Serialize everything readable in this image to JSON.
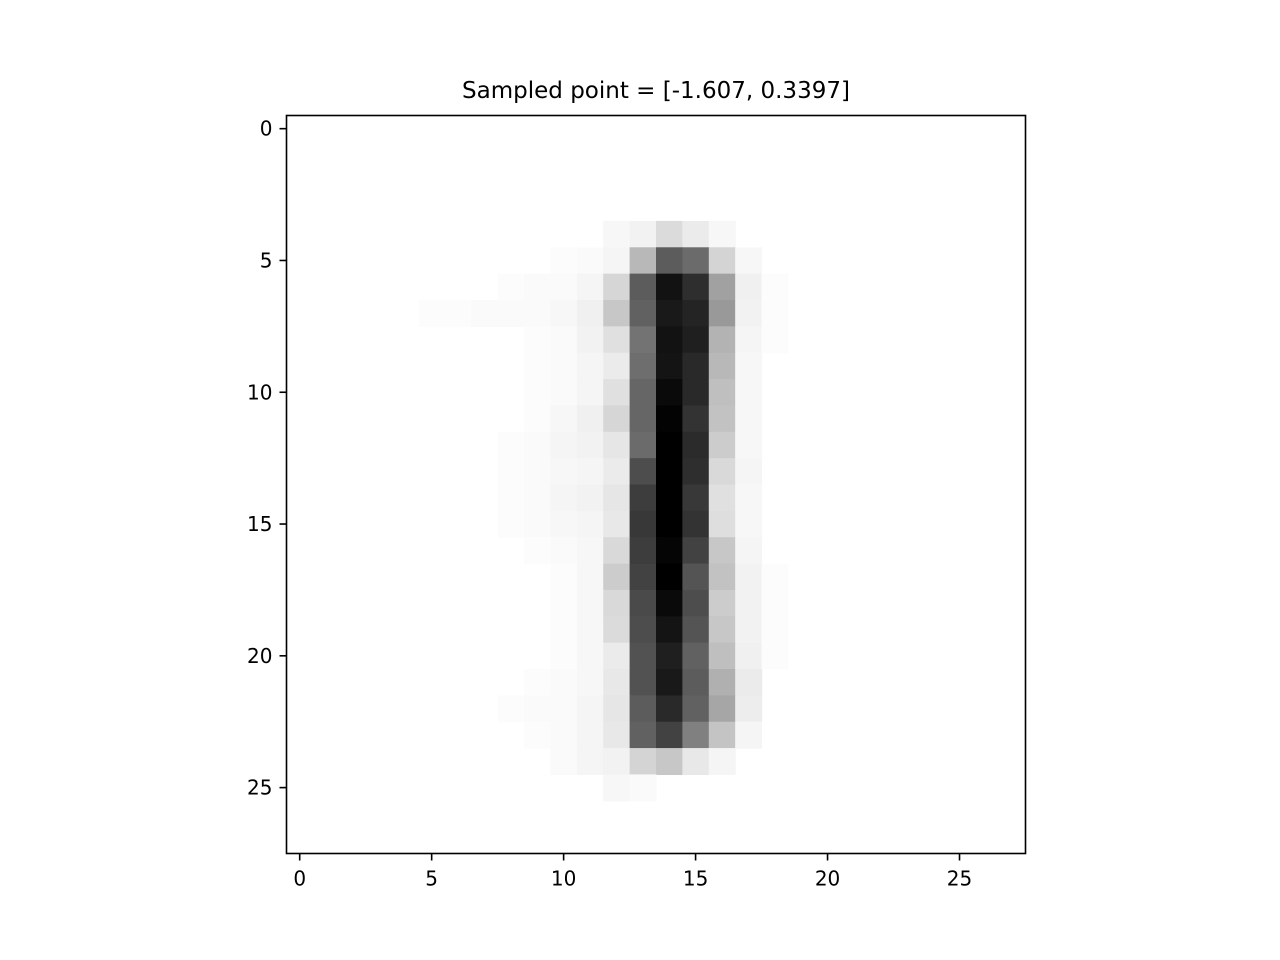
{
  "chart_data": {
    "type": "heatmap",
    "title": "Sampled point = [-1.607, 0.3397]",
    "xlabel": "",
    "ylabel": "",
    "colormap": "gray_r",
    "value_range": [
      0,
      1
    ],
    "xlim": [
      -0.5,
      27.5
    ],
    "ylim": [
      27.5,
      -0.5
    ],
    "x_ticks": [
      0,
      5,
      10,
      15,
      20,
      25
    ],
    "y_ticks": [
      0,
      5,
      10,
      15,
      20,
      25
    ],
    "x_tick_labels": [
      "0",
      "5",
      "10",
      "15",
      "20",
      "25"
    ],
    "y_tick_labels": [
      "0",
      "5",
      "10",
      "15",
      "20",
      "25"
    ],
    "grid": false,
    "rows": 28,
    "cols": 28,
    "nonzero_pixels": [
      {
        "row": 4,
        "col": 12,
        "v": 0.03
      },
      {
        "row": 4,
        "col": 13,
        "v": 0.05
      },
      {
        "row": 4,
        "col": 14,
        "v": 0.14
      },
      {
        "row": 4,
        "col": 15,
        "v": 0.08
      },
      {
        "row": 4,
        "col": 16,
        "v": 0.03
      },
      {
        "row": 5,
        "col": 10,
        "v": 0.01
      },
      {
        "row": 5,
        "col": 11,
        "v": 0.02
      },
      {
        "row": 5,
        "col": 12,
        "v": 0.04
      },
      {
        "row": 5,
        "col": 13,
        "v": 0.28
      },
      {
        "row": 5,
        "col": 14,
        "v": 0.64
      },
      {
        "row": 5,
        "col": 15,
        "v": 0.58
      },
      {
        "row": 5,
        "col": 16,
        "v": 0.17
      },
      {
        "row": 5,
        "col": 17,
        "v": 0.03
      },
      {
        "row": 6,
        "col": 8,
        "v": 0.01
      },
      {
        "row": 6,
        "col": 9,
        "v": 0.02
      },
      {
        "row": 6,
        "col": 10,
        "v": 0.02
      },
      {
        "row": 6,
        "col": 11,
        "v": 0.04
      },
      {
        "row": 6,
        "col": 12,
        "v": 0.16
      },
      {
        "row": 6,
        "col": 13,
        "v": 0.64
      },
      {
        "row": 6,
        "col": 14,
        "v": 0.93
      },
      {
        "row": 6,
        "col": 15,
        "v": 0.82
      },
      {
        "row": 6,
        "col": 16,
        "v": 0.37
      },
      {
        "row": 6,
        "col": 17,
        "v": 0.06
      },
      {
        "row": 6,
        "col": 18,
        "v": 0.01
      },
      {
        "row": 7,
        "col": 5,
        "v": 0.01
      },
      {
        "row": 7,
        "col": 6,
        "v": 0.01
      },
      {
        "row": 7,
        "col": 7,
        "v": 0.02
      },
      {
        "row": 7,
        "col": 8,
        "v": 0.02
      },
      {
        "row": 7,
        "col": 9,
        "v": 0.02
      },
      {
        "row": 7,
        "col": 10,
        "v": 0.03
      },
      {
        "row": 7,
        "col": 11,
        "v": 0.06
      },
      {
        "row": 7,
        "col": 12,
        "v": 0.22
      },
      {
        "row": 7,
        "col": 13,
        "v": 0.62
      },
      {
        "row": 7,
        "col": 14,
        "v": 0.9
      },
      {
        "row": 7,
        "col": 15,
        "v": 0.86
      },
      {
        "row": 7,
        "col": 16,
        "v": 0.4
      },
      {
        "row": 7,
        "col": 17,
        "v": 0.05
      },
      {
        "row": 7,
        "col": 18,
        "v": 0.01
      },
      {
        "row": 8,
        "col": 9,
        "v": 0.01
      },
      {
        "row": 8,
        "col": 10,
        "v": 0.02
      },
      {
        "row": 8,
        "col": 11,
        "v": 0.05
      },
      {
        "row": 8,
        "col": 12,
        "v": 0.12
      },
      {
        "row": 8,
        "col": 13,
        "v": 0.55
      },
      {
        "row": 8,
        "col": 14,
        "v": 0.93
      },
      {
        "row": 8,
        "col": 15,
        "v": 0.88
      },
      {
        "row": 8,
        "col": 16,
        "v": 0.3
      },
      {
        "row": 8,
        "col": 17,
        "v": 0.04
      },
      {
        "row": 8,
        "col": 18,
        "v": 0.01
      },
      {
        "row": 9,
        "col": 9,
        "v": 0.01
      },
      {
        "row": 9,
        "col": 10,
        "v": 0.02
      },
      {
        "row": 9,
        "col": 11,
        "v": 0.04
      },
      {
        "row": 9,
        "col": 12,
        "v": 0.08
      },
      {
        "row": 9,
        "col": 13,
        "v": 0.57
      },
      {
        "row": 9,
        "col": 14,
        "v": 0.92
      },
      {
        "row": 9,
        "col": 15,
        "v": 0.84
      },
      {
        "row": 9,
        "col": 16,
        "v": 0.28
      },
      {
        "row": 9,
        "col": 17,
        "v": 0.03
      },
      {
        "row": 10,
        "col": 9,
        "v": 0.01
      },
      {
        "row": 10,
        "col": 10,
        "v": 0.02
      },
      {
        "row": 10,
        "col": 11,
        "v": 0.04
      },
      {
        "row": 10,
        "col": 12,
        "v": 0.12
      },
      {
        "row": 10,
        "col": 13,
        "v": 0.6
      },
      {
        "row": 10,
        "col": 14,
        "v": 0.96
      },
      {
        "row": 10,
        "col": 15,
        "v": 0.84
      },
      {
        "row": 10,
        "col": 16,
        "v": 0.25
      },
      {
        "row": 10,
        "col": 17,
        "v": 0.03
      },
      {
        "row": 11,
        "col": 9,
        "v": 0.01
      },
      {
        "row": 11,
        "col": 10,
        "v": 0.03
      },
      {
        "row": 11,
        "col": 11,
        "v": 0.06
      },
      {
        "row": 11,
        "col": 12,
        "v": 0.16
      },
      {
        "row": 11,
        "col": 13,
        "v": 0.6
      },
      {
        "row": 11,
        "col": 14,
        "v": 0.99
      },
      {
        "row": 11,
        "col": 15,
        "v": 0.8
      },
      {
        "row": 11,
        "col": 16,
        "v": 0.24
      },
      {
        "row": 11,
        "col": 17,
        "v": 0.03
      },
      {
        "row": 12,
        "col": 8,
        "v": 0.01
      },
      {
        "row": 12,
        "col": 9,
        "v": 0.02
      },
      {
        "row": 12,
        "col": 10,
        "v": 0.04
      },
      {
        "row": 12,
        "col": 11,
        "v": 0.05
      },
      {
        "row": 12,
        "col": 12,
        "v": 0.1
      },
      {
        "row": 12,
        "col": 13,
        "v": 0.58
      },
      {
        "row": 12,
        "col": 14,
        "v": 1.0
      },
      {
        "row": 12,
        "col": 15,
        "v": 0.83
      },
      {
        "row": 12,
        "col": 16,
        "v": 0.2
      },
      {
        "row": 12,
        "col": 17,
        "v": 0.03
      },
      {
        "row": 13,
        "col": 8,
        "v": 0.01
      },
      {
        "row": 13,
        "col": 9,
        "v": 0.02
      },
      {
        "row": 13,
        "col": 10,
        "v": 0.03
      },
      {
        "row": 13,
        "col": 11,
        "v": 0.04
      },
      {
        "row": 13,
        "col": 12,
        "v": 0.08
      },
      {
        "row": 13,
        "col": 13,
        "v": 0.7
      },
      {
        "row": 13,
        "col": 14,
        "v": 1.0
      },
      {
        "row": 13,
        "col": 15,
        "v": 0.82
      },
      {
        "row": 13,
        "col": 16,
        "v": 0.15
      },
      {
        "row": 13,
        "col": 17,
        "v": 0.04
      },
      {
        "row": 14,
        "col": 8,
        "v": 0.01
      },
      {
        "row": 14,
        "col": 9,
        "v": 0.02
      },
      {
        "row": 14,
        "col": 10,
        "v": 0.04
      },
      {
        "row": 14,
        "col": 11,
        "v": 0.05
      },
      {
        "row": 14,
        "col": 12,
        "v": 0.1
      },
      {
        "row": 14,
        "col": 13,
        "v": 0.76
      },
      {
        "row": 14,
        "col": 14,
        "v": 1.0
      },
      {
        "row": 14,
        "col": 15,
        "v": 0.78
      },
      {
        "row": 14,
        "col": 16,
        "v": 0.12
      },
      {
        "row": 14,
        "col": 17,
        "v": 0.03
      },
      {
        "row": 15,
        "col": 8,
        "v": 0.01
      },
      {
        "row": 15,
        "col": 9,
        "v": 0.02
      },
      {
        "row": 15,
        "col": 10,
        "v": 0.03
      },
      {
        "row": 15,
        "col": 11,
        "v": 0.04
      },
      {
        "row": 15,
        "col": 12,
        "v": 0.09
      },
      {
        "row": 15,
        "col": 13,
        "v": 0.78
      },
      {
        "row": 15,
        "col": 14,
        "v": 1.0
      },
      {
        "row": 15,
        "col": 15,
        "v": 0.8
      },
      {
        "row": 15,
        "col": 16,
        "v": 0.13
      },
      {
        "row": 15,
        "col": 17,
        "v": 0.03
      },
      {
        "row": 16,
        "col": 9,
        "v": 0.01
      },
      {
        "row": 16,
        "col": 10,
        "v": 0.02
      },
      {
        "row": 16,
        "col": 11,
        "v": 0.03
      },
      {
        "row": 16,
        "col": 12,
        "v": 0.15
      },
      {
        "row": 16,
        "col": 13,
        "v": 0.76
      },
      {
        "row": 16,
        "col": 14,
        "v": 0.98
      },
      {
        "row": 16,
        "col": 15,
        "v": 0.74
      },
      {
        "row": 16,
        "col": 16,
        "v": 0.22
      },
      {
        "row": 16,
        "col": 17,
        "v": 0.04
      },
      {
        "row": 17,
        "col": 10,
        "v": 0.01
      },
      {
        "row": 17,
        "col": 11,
        "v": 0.03
      },
      {
        "row": 17,
        "col": 12,
        "v": 0.2
      },
      {
        "row": 17,
        "col": 13,
        "v": 0.74
      },
      {
        "row": 17,
        "col": 14,
        "v": 1.0
      },
      {
        "row": 17,
        "col": 15,
        "v": 0.67
      },
      {
        "row": 17,
        "col": 16,
        "v": 0.24
      },
      {
        "row": 17,
        "col": 17,
        "v": 0.05
      },
      {
        "row": 17,
        "col": 18,
        "v": 0.01
      },
      {
        "row": 18,
        "col": 10,
        "v": 0.01
      },
      {
        "row": 18,
        "col": 11,
        "v": 0.03
      },
      {
        "row": 18,
        "col": 12,
        "v": 0.15
      },
      {
        "row": 18,
        "col": 13,
        "v": 0.71
      },
      {
        "row": 18,
        "col": 14,
        "v": 0.96
      },
      {
        "row": 18,
        "col": 15,
        "v": 0.7
      },
      {
        "row": 18,
        "col": 16,
        "v": 0.2
      },
      {
        "row": 18,
        "col": 17,
        "v": 0.05
      },
      {
        "row": 18,
        "col": 18,
        "v": 0.01
      },
      {
        "row": 19,
        "col": 10,
        "v": 0.01
      },
      {
        "row": 19,
        "col": 11,
        "v": 0.03
      },
      {
        "row": 19,
        "col": 12,
        "v": 0.14
      },
      {
        "row": 19,
        "col": 13,
        "v": 0.7
      },
      {
        "row": 19,
        "col": 14,
        "v": 0.92
      },
      {
        "row": 19,
        "col": 15,
        "v": 0.67
      },
      {
        "row": 19,
        "col": 16,
        "v": 0.22
      },
      {
        "row": 19,
        "col": 17,
        "v": 0.05
      },
      {
        "row": 19,
        "col": 18,
        "v": 0.01
      },
      {
        "row": 20,
        "col": 10,
        "v": 0.01
      },
      {
        "row": 20,
        "col": 11,
        "v": 0.03
      },
      {
        "row": 20,
        "col": 12,
        "v": 0.08
      },
      {
        "row": 20,
        "col": 13,
        "v": 0.68
      },
      {
        "row": 20,
        "col": 14,
        "v": 0.88
      },
      {
        "row": 20,
        "col": 15,
        "v": 0.62
      },
      {
        "row": 20,
        "col": 16,
        "v": 0.25
      },
      {
        "row": 20,
        "col": 17,
        "v": 0.06
      },
      {
        "row": 20,
        "col": 18,
        "v": 0.01
      },
      {
        "row": 21,
        "col": 9,
        "v": 0.01
      },
      {
        "row": 21,
        "col": 10,
        "v": 0.02
      },
      {
        "row": 21,
        "col": 11,
        "v": 0.03
      },
      {
        "row": 21,
        "col": 12,
        "v": 0.09
      },
      {
        "row": 21,
        "col": 13,
        "v": 0.68
      },
      {
        "row": 21,
        "col": 14,
        "v": 0.9
      },
      {
        "row": 21,
        "col": 15,
        "v": 0.64
      },
      {
        "row": 21,
        "col": 16,
        "v": 0.31
      },
      {
        "row": 21,
        "col": 17,
        "v": 0.08
      },
      {
        "row": 22,
        "col": 8,
        "v": 0.01
      },
      {
        "row": 22,
        "col": 9,
        "v": 0.02
      },
      {
        "row": 22,
        "col": 10,
        "v": 0.02
      },
      {
        "row": 22,
        "col": 11,
        "v": 0.04
      },
      {
        "row": 22,
        "col": 12,
        "v": 0.1
      },
      {
        "row": 22,
        "col": 13,
        "v": 0.64
      },
      {
        "row": 22,
        "col": 14,
        "v": 0.84
      },
      {
        "row": 22,
        "col": 15,
        "v": 0.62
      },
      {
        "row": 22,
        "col": 16,
        "v": 0.35
      },
      {
        "row": 22,
        "col": 17,
        "v": 0.07
      },
      {
        "row": 23,
        "col": 9,
        "v": 0.01
      },
      {
        "row": 23,
        "col": 10,
        "v": 0.02
      },
      {
        "row": 23,
        "col": 11,
        "v": 0.04
      },
      {
        "row": 23,
        "col": 12,
        "v": 0.09
      },
      {
        "row": 23,
        "col": 13,
        "v": 0.62
      },
      {
        "row": 23,
        "col": 14,
        "v": 0.74
      },
      {
        "row": 23,
        "col": 15,
        "v": 0.5
      },
      {
        "row": 23,
        "col": 16,
        "v": 0.23
      },
      {
        "row": 23,
        "col": 17,
        "v": 0.04
      },
      {
        "row": 24,
        "col": 10,
        "v": 0.02
      },
      {
        "row": 24,
        "col": 11,
        "v": 0.04
      },
      {
        "row": 24,
        "col": 12,
        "v": 0.05
      },
      {
        "row": 24,
        "col": 13,
        "v": 0.17
      },
      {
        "row": 24,
        "col": 14,
        "v": 0.22
      },
      {
        "row": 24,
        "col": 15,
        "v": 0.09
      },
      {
        "row": 24,
        "col": 16,
        "v": 0.04
      },
      {
        "row": 25,
        "col": 12,
        "v": 0.03
      },
      {
        "row": 25,
        "col": 13,
        "v": 0.02
      }
    ]
  }
}
